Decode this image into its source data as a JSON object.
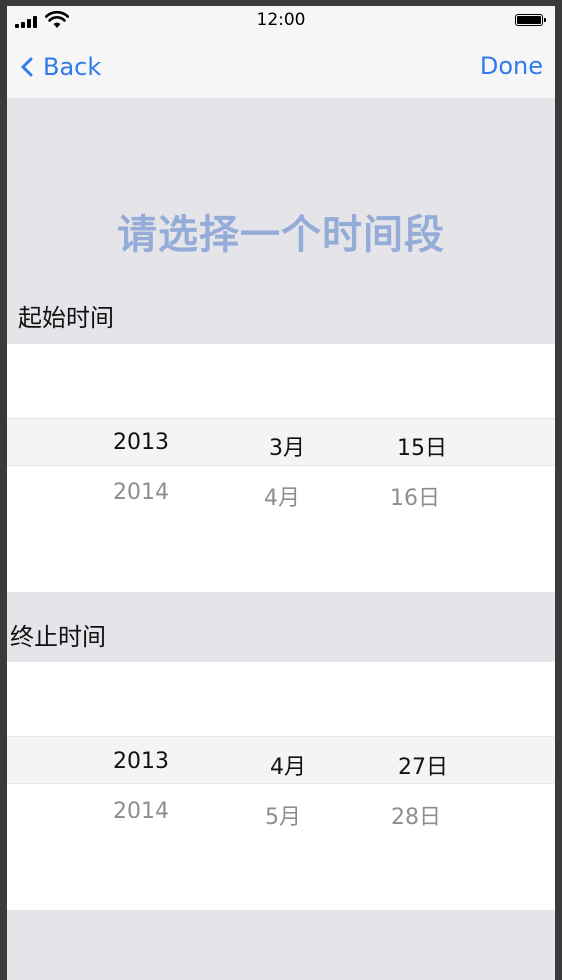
{
  "status_bar": {
    "time": "12:00"
  },
  "nav": {
    "back_label": "Back",
    "done_label": "Done"
  },
  "heading": "请选择一个时间段",
  "start": {
    "label": "起始时间",
    "selected": {
      "year": "2013",
      "month": "3月",
      "day": "15日"
    },
    "next": {
      "year": "2014",
      "month": "4月",
      "day": "16日"
    }
  },
  "end": {
    "label": "终止时间",
    "selected": {
      "year": "2013",
      "month": "4月",
      "day": "27日"
    },
    "next": {
      "year": "2014",
      "month": "5月",
      "day": "28日"
    }
  },
  "colors": {
    "accent": "#2f7bea",
    "heading": "#95acd9",
    "background": "#e5e4e9",
    "picker": "#ffffff"
  },
  "icons": {
    "back": "chevron-left-icon",
    "signal": "cellular-signal-icon",
    "wifi": "wifi-icon",
    "battery": "battery-icon"
  }
}
